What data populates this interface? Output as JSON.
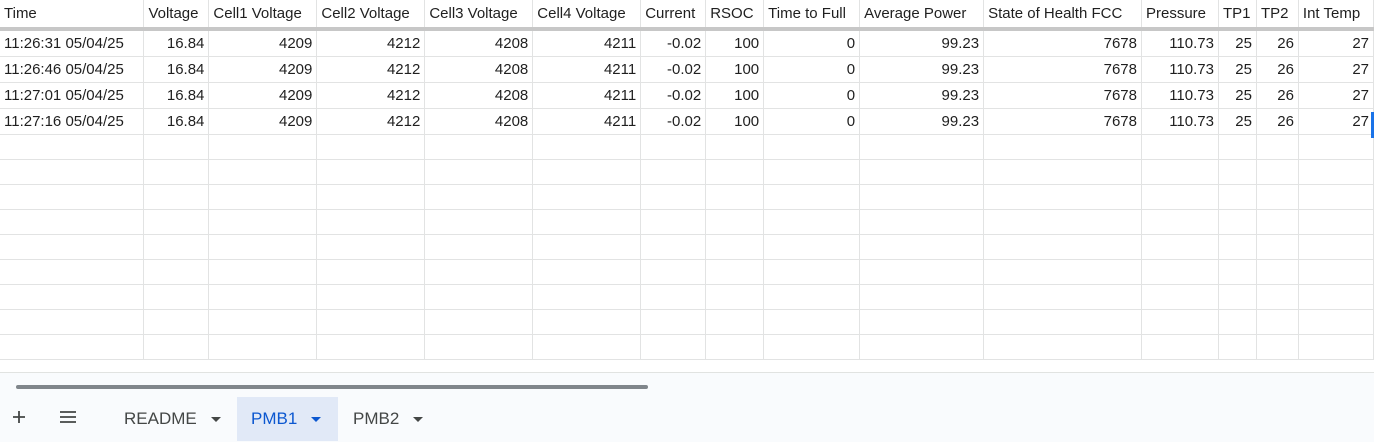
{
  "columns": [
    "Time",
    "Voltage",
    "Cell1 Voltage",
    "Cell2 Voltage",
    "Cell3 Voltage",
    "Cell4 Voltage",
    "Current",
    "RSOC",
    "Time to Full",
    "Average Power",
    "State of Health FCC",
    "Pressure",
    "TP1",
    "TP2",
    "Int Temp"
  ],
  "rows": [
    [
      "11:26:31 05/04/25",
      "16.84",
      "4209",
      "4212",
      "4208",
      "4211",
      "-0.02",
      "100",
      "0",
      "99.23",
      "7678",
      "110.73",
      "25",
      "26",
      "27"
    ],
    [
      "11:26:46 05/04/25",
      "16.84",
      "4209",
      "4212",
      "4208",
      "4211",
      "-0.02",
      "100",
      "0",
      "99.23",
      "7678",
      "110.73",
      "25",
      "26",
      "27"
    ],
    [
      "11:27:01 05/04/25",
      "16.84",
      "4209",
      "4212",
      "4208",
      "4211",
      "-0.02",
      "100",
      "0",
      "99.23",
      "7678",
      "110.73",
      "25",
      "26",
      "27"
    ],
    [
      "11:27:16 05/04/25",
      "16.84",
      "4209",
      "4212",
      "4208",
      "4211",
      "-0.02",
      "100",
      "0",
      "99.23",
      "7678",
      "110.73",
      "25",
      "26",
      "27"
    ]
  ],
  "empty_row_count": 9,
  "sheet_tabs": [
    {
      "label": "README",
      "active": false
    },
    {
      "label": "PMB1",
      "active": true
    },
    {
      "label": "PMB2",
      "active": false
    }
  ],
  "controls": {
    "add_sheet_icon": "plus-icon",
    "all_sheets_icon": "menu-icon"
  },
  "colors": {
    "active_tab_bg": "#e1e9f7",
    "active_tab_text": "#0b57d0",
    "selection": "#1a73e8",
    "gridline": "#e2e3e3"
  }
}
